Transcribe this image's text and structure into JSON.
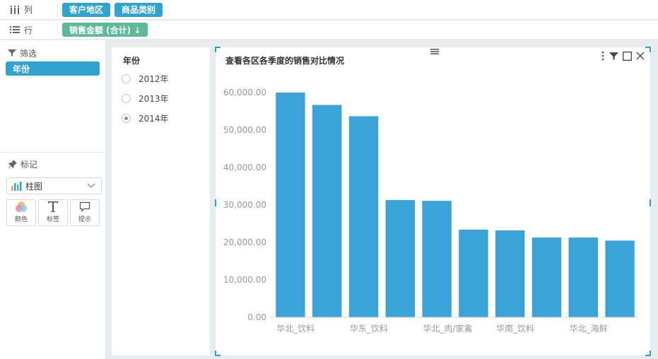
{
  "shelves": {
    "columns": {
      "label": "列",
      "pills": [
        "客户地区",
        "商品类别"
      ]
    },
    "rows": {
      "label": "行",
      "pills": [
        "销售金额 (合计) ↓"
      ]
    }
  },
  "filter_section": {
    "title": "筛选",
    "pill": "年份"
  },
  "marks_section": {
    "title": "标记",
    "chart_type": "柱图",
    "buttons": [
      "颜色",
      "标签",
      "提示"
    ]
  },
  "year_filter": {
    "title": "年份",
    "options": [
      "2012年",
      "2013年",
      "2014年"
    ],
    "selected": "2014年"
  },
  "colors": {
    "accent": "#31a3cf",
    "bar": "#3aa3d8",
    "green_pill": "#5db996"
  },
  "chart_data": {
    "type": "bar",
    "title": "查看各区各季度的销售对比情况",
    "categories": [
      "华北_饮料",
      "",
      "华东_饮料",
      "",
      "华北_肉/家禽",
      "",
      "华南_饮料",
      "",
      "华北_海鲜",
      ""
    ],
    "values": [
      60000,
      56700,
      53700,
      31300,
      31100,
      23400,
      23200,
      21300,
      21300,
      20500
    ],
    "y_ticks": [
      "0.00",
      "10,000.00",
      "20,000.00",
      "30,000.00",
      "40,000.00",
      "50,000.00",
      "60,000.00"
    ],
    "ylim": [
      0,
      60000
    ],
    "grid": false
  }
}
